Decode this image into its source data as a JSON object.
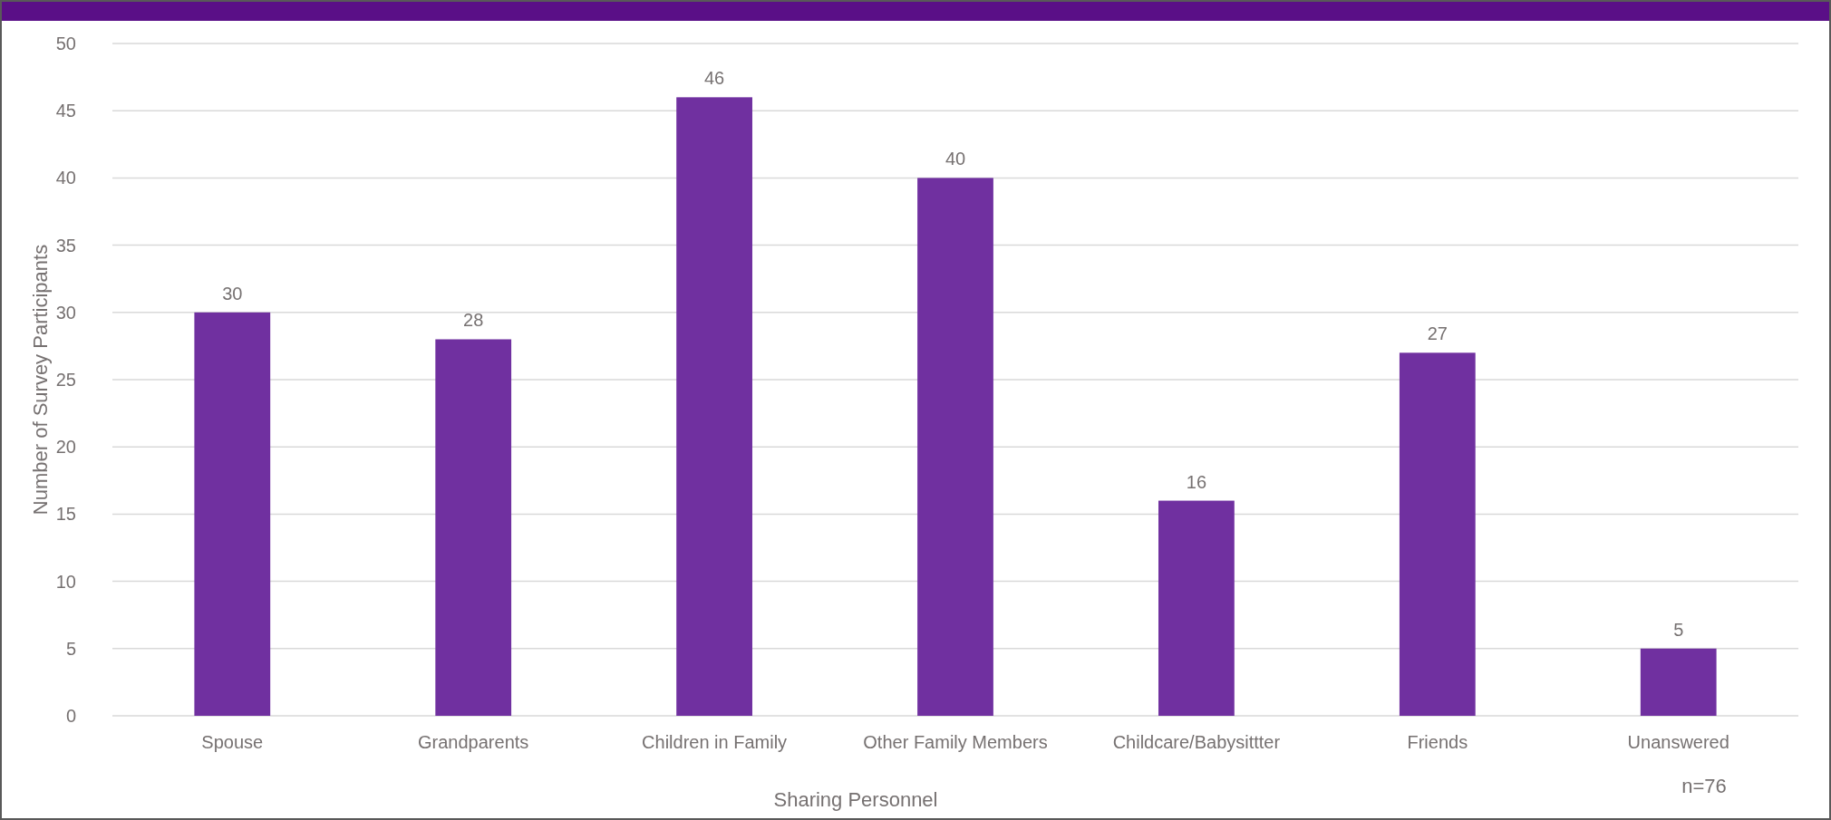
{
  "chart_data": {
    "type": "bar",
    "xlabel": "Sharing Personnel",
    "ylabel": "Number of Survey Participants",
    "categories": [
      "Spouse",
      "Grandparents",
      "Children in Family",
      "Other Family Members",
      "Childcare/Babysittter",
      "Friends",
      "Unanswered"
    ],
    "values": [
      30,
      28,
      46,
      40,
      16,
      27,
      5
    ],
    "color": "#7030a0",
    "ylim": [
      0,
      50
    ],
    "yticks": [
      0,
      5,
      10,
      15,
      20,
      25,
      30,
      35,
      40,
      45,
      50
    ],
    "grid": "y",
    "data_labels": true,
    "annotations": [
      "n=76"
    ]
  }
}
